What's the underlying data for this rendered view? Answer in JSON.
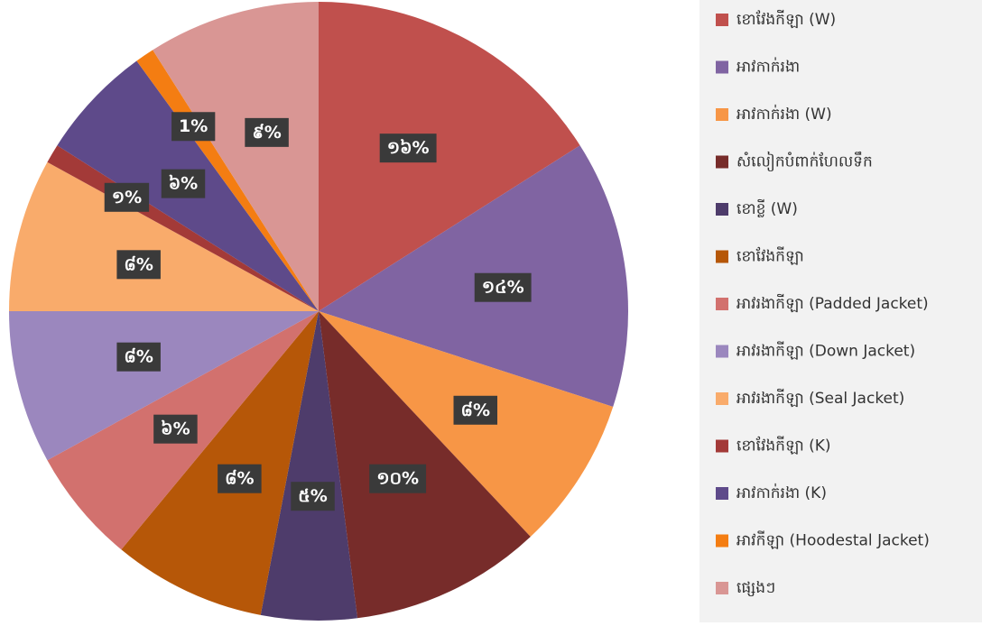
{
  "chart_data": {
    "type": "pie",
    "categories": [
      "ខោវែងកីឡា (W)",
      "អាវកាក់រងា",
      "អាវកាក់រងា (W)",
      "សំលៀកបំពាក់ហែលទឹក",
      "ខោខ្លី (W)",
      "ខោវែងកីឡា",
      "អាវរងាកីឡា (Padded Jacket)",
      "អាវរងាកីឡា (Down Jacket)",
      "អាវរងាកីឡា (Seal Jacket)",
      "ខោវែងកីឡា (K)",
      "អាវកាក់រងា (K)",
      "អាវកីឡា (Hoodestal Jacket)",
      "ផ្សេងៗ"
    ],
    "values": [
      16,
      14,
      8,
      10,
      5,
      8,
      6,
      8,
      8,
      1,
      6,
      1,
      9
    ],
    "value_labels": [
      "១៦%",
      "១៤%",
      "៨%",
      "១០%",
      "៥%",
      "៨%",
      "៦%",
      "៨%",
      "៨%",
      "១%",
      "៦%",
      "1%",
      "៩%"
    ],
    "colors": [
      "#c0504d",
      "#8064a2",
      "#f79646",
      "#772c2a",
      "#4e3c6b",
      "#b65708",
      "#d2716e",
      "#9b87be",
      "#f9ab6b",
      "#a33a38",
      "#5e4a8a",
      "#f47d12",
      "#d99694"
    ]
  }
}
